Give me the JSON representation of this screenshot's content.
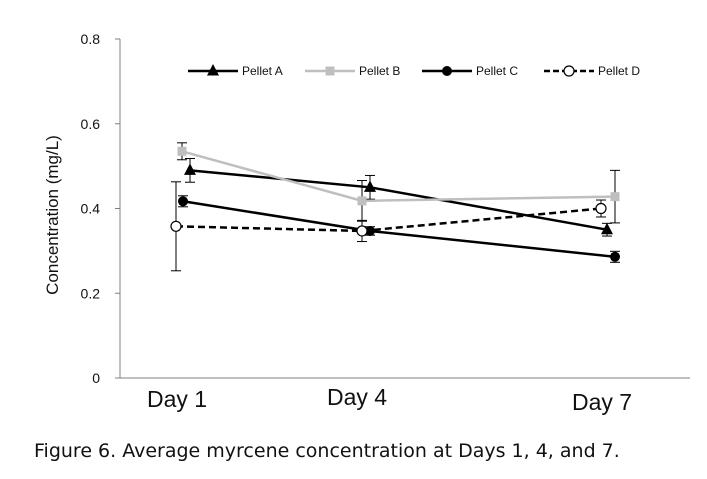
{
  "chart_data": {
    "type": "line",
    "title": "",
    "xlabel": "",
    "ylabel": "Concentration (mg/L)",
    "categories": [
      "Day 1",
      "Day 4",
      "Day 7"
    ],
    "y_ticks": [
      "0",
      "0.2",
      "0.4",
      "0.6",
      "0.8"
    ],
    "ylim": [
      0,
      0.8
    ],
    "grid": false,
    "legend_position": "top-right",
    "series": [
      {
        "name": "Pellet A",
        "values": [
          0.49,
          0.45,
          0.35
        ],
        "errors": [
          0.028,
          0.028,
          0.015
        ],
        "color": "#000000",
        "marker": "triangle",
        "dashed": false
      },
      {
        "name": "Pellet B",
        "values": [
          0.535,
          0.418,
          0.428
        ],
        "errors": [
          0.02,
          0.048,
          0.062
        ],
        "color": "#bfbfbf",
        "marker": "square",
        "dashed": false
      },
      {
        "name": "Pellet C",
        "values": [
          0.417,
          0.347,
          0.286
        ],
        "errors": [
          0.013,
          0.01,
          0.013
        ],
        "color": "#000000",
        "marker": "circle",
        "dashed": false
      },
      {
        "name": "Pellet D",
        "values": [
          0.358,
          0.347,
          0.4
        ],
        "errors": [
          0.105,
          0.025,
          0.02
        ],
        "color": "#000000",
        "marker": "open-circle",
        "dashed": true
      }
    ]
  },
  "caption": "Figure 6. Average myrcene concentration at Days 1, 4, and 7."
}
